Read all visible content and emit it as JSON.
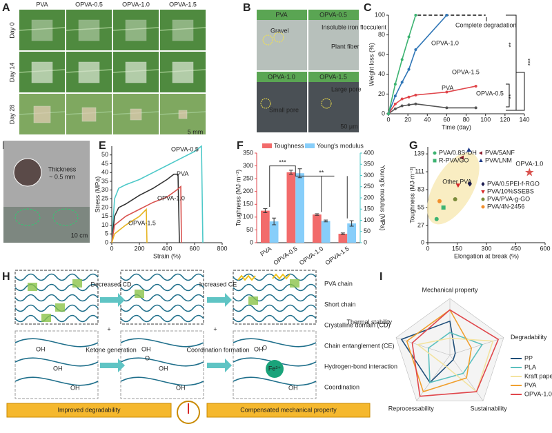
{
  "panel_labels": [
    "A",
    "B",
    "C",
    "D",
    "E",
    "F",
    "G",
    "H",
    "I"
  ],
  "photos_a": {
    "columns": [
      "PVA",
      "OPVA-0.5",
      "OPVA-1.0",
      "OPVA-1.5"
    ],
    "rows": [
      "Day 0",
      "Day 14",
      "Day 28"
    ],
    "scale": "5 mm"
  },
  "micrographs_b": {
    "titles": [
      "PVA",
      "OPVA-0.5",
      "OPVA-1.0",
      "OPVA-1.5"
    ],
    "notes": [
      "Gravel",
      "Insoluble iron flocculent",
      "Plant fiber",
      "Small pore",
      "Large pore"
    ],
    "scale": "50 μm"
  },
  "photo_d": {
    "note": [
      "Thickness",
      "~ 0.5 mm"
    ],
    "scale": "10 cm"
  },
  "diagram_h": {
    "legend": [
      "PVA chain",
      "Short chain",
      "Crystalline domain (CD)",
      "Chain entanglement (CE)",
      "Hydrogen-bond interaction",
      "Coordination"
    ],
    "steps": [
      "Decreased CD",
      "Increased CE",
      "Ketone generation",
      "Coordination formation"
    ],
    "plus": "+",
    "hydroxyl": "OH",
    "carbonyl": "O",
    "ion": "Fe³⁺",
    "balance": [
      "Improved degradability",
      "Compensated mechanical property"
    ]
  },
  "chart_data": [
    {
      "type": "line",
      "x_label": "Time (day)",
      "y_label": "Weight loss (%)",
      "xlim": [
        0,
        140
      ],
      "xticks": [
        0,
        20,
        40,
        60,
        80,
        100,
        120,
        140
      ],
      "ylim": [
        0,
        100
      ],
      "yticks": [
        0,
        20,
        40,
        60,
        80,
        100
      ],
      "series": [
        {
          "name": "PVA",
          "color": "#555555",
          "x": [
            0,
            7,
            14,
            21,
            28,
            60,
            90
          ],
          "values": [
            0,
            5,
            8,
            9,
            10,
            6,
            6
          ]
        },
        {
          "name": "OPVA-0.5",
          "color": "#e0474c",
          "x": [
            0,
            7,
            14,
            21,
            28,
            60,
            90
          ],
          "values": [
            0,
            10,
            15,
            17,
            19,
            22,
            28
          ]
        },
        {
          "name": "OPVA-1.0",
          "color": "#2e75b6",
          "x": [
            0,
            7,
            14,
            21,
            28,
            60
          ],
          "values": [
            0,
            18,
            32,
            45,
            65,
            100
          ]
        },
        {
          "name": "OPVA-1.5",
          "color": "#3cb371",
          "x": [
            0,
            7,
            14,
            21,
            28
          ],
          "values": [
            0,
            30,
            55,
            78,
            100
          ]
        }
      ],
      "hline": {
        "y": 100,
        "x": [
          30,
          100
        ]
      },
      "annotations": [
        "Complete degradation",
        "**",
        "***",
        "**"
      ]
    },
    {
      "type": "line",
      "x_label": "Strain (%)",
      "y_label": "Stress (MPa)",
      "xlim": [
        0,
        800
      ],
      "xticks": [
        0,
        200,
        400,
        600,
        800
      ],
      "ylim": [
        0,
        55
      ],
      "yticks": [
        0,
        5,
        10,
        15,
        20,
        25,
        30,
        35,
        40,
        45,
        50
      ],
      "series": [
        {
          "name": "OPVA-0.5",
          "color": "#4ec9c9",
          "x": [
            0,
            20,
            50,
            100,
            200,
            300,
            400,
            500,
            600,
            650,
            660
          ],
          "values": [
            0,
            25,
            31,
            33,
            36,
            40,
            44,
            48,
            52,
            55,
            0
          ]
        },
        {
          "name": "PVA",
          "color": "#333333",
          "x": [
            0,
            20,
            50,
            100,
            200,
            300,
            400,
            450,
            480,
            490
          ],
          "values": [
            0,
            15,
            20,
            22,
            27,
            31,
            36,
            39,
            39,
            0
          ]
        },
        {
          "name": "OPVA-1.0",
          "color": "#d9534f",
          "x": [
            0,
            20,
            100,
            200,
            300,
            400,
            470,
            500,
            505
          ],
          "values": [
            0,
            10,
            15,
            19,
            23,
            26,
            30,
            32,
            0
          ]
        },
        {
          "name": "OPVA-1.5",
          "color": "#e6b422",
          "x": [
            0,
            20,
            100,
            200,
            250,
            255
          ],
          "values": [
            0,
            5,
            10,
            15,
            19,
            0
          ]
        }
      ]
    },
    {
      "type": "bar",
      "categories": [
        "PVA",
        "OPVA-0.5",
        "OPVA-1.0",
        "OPVA-1.5"
      ],
      "y_label": "Toughness (MJ·m⁻³)",
      "y2_label": "Young's modulus (MPa)",
      "ylim": [
        0,
        350
      ],
      "yticks": [
        0,
        50,
        100,
        150,
        200,
        250,
        300,
        350
      ],
      "y2lim": [
        0,
        400
      ],
      "y2ticks": [
        0,
        50,
        100,
        150,
        200,
        250,
        300,
        350,
        400
      ],
      "series": [
        {
          "name": "Toughness",
          "color": "#f26b6b",
          "values": [
            125,
            275,
            110,
            35
          ],
          "errors": [
            8,
            8,
            3,
            3
          ]
        },
        {
          "name": "Young's modulus",
          "color": "#87cefa",
          "axis": "y2",
          "values": [
            95,
            310,
            97,
            86
          ],
          "errors": [
            15,
            20,
            4,
            12
          ]
        }
      ],
      "annotations": [
        "***",
        "**"
      ]
    },
    {
      "type": "scatter",
      "x_label": "Elongation at break (%)",
      "y_label": "Toughness (MJ·m⁻³)",
      "xlim": [
        0,
        600
      ],
      "xticks": [
        0,
        150,
        300,
        450,
        600
      ],
      "ylim": [
        0,
        150
      ],
      "yticks": [
        0,
        27,
        55,
        83,
        111,
        139
      ],
      "annotations": [
        "Other PVA"
      ],
      "series": [
        {
          "name": "PVA/0.8S-OH",
          "color": "#3cb371",
          "marker": "circle",
          "x": [
            45
          ],
          "values": [
            37
          ]
        },
        {
          "name": "PVA/5ANF",
          "color": "#8b1a2b",
          "marker": "triangle-left",
          "x": [
            175
          ],
          "values": [
            133
          ]
        },
        {
          "name": "R-PVA/GO",
          "color": "#3cb371",
          "marker": "square",
          "x": [
            80
          ],
          "values": [
            55
          ]
        },
        {
          "name": "PVA/LNM",
          "color": "#1f3c88",
          "marker": "triangle-up",
          "x": [
            210
          ],
          "values": [
            145
          ]
        },
        {
          "name": "PVA/0.5PEI-f-RGO",
          "color": "#1a1a4e",
          "marker": "diamond",
          "x": [
            215
          ],
          "values": [
            92
          ]
        },
        {
          "name": "PVA/10%SSEBS",
          "color": "#d62728",
          "marker": "triangle-down",
          "x": [
            155
          ],
          "values": [
            90
          ]
        },
        {
          "name": "PVA/PVA-g-GO",
          "color": "#7a8b3a",
          "marker": "circle",
          "x": [
            140
          ],
          "values": [
            68
          ]
        },
        {
          "name": "PVA/4N-2456",
          "color": "#f28e2b",
          "marker": "circle",
          "x": [
            60
          ],
          "values": [
            65
          ]
        },
        {
          "name": "OPVA-1.0",
          "color": "#d9534f",
          "marker": "star",
          "x": [
            520
          ],
          "values": [
            110
          ]
        }
      ]
    },
    {
      "type": "radar",
      "categories": [
        "Mechanical property",
        "Degradability",
        "Sustainability",
        "Reprocessability",
        "Thermal stability"
      ],
      "rlim": [
        0,
        5
      ],
      "series": [
        {
          "name": "PP",
          "color": "#1f4e79",
          "values": [
            3,
            0.5,
            0.5,
            3,
            4.5
          ]
        },
        {
          "name": "PLA",
          "color": "#5bc0be",
          "values": [
            2,
            3,
            2,
            3,
            2
          ]
        },
        {
          "name": "Kraft paper",
          "color": "#f3e3a0",
          "values": [
            1.5,
            4,
            4,
            1,
            3
          ]
        },
        {
          "name": "PVA",
          "color": "#f0a030",
          "values": [
            4,
            2,
            2.5,
            4,
            4
          ]
        },
        {
          "name": "OPVA-1.0",
          "color": "#e0474c",
          "values": [
            4,
            4.5,
            4,
            4.5,
            3.5
          ]
        }
      ]
    }
  ]
}
